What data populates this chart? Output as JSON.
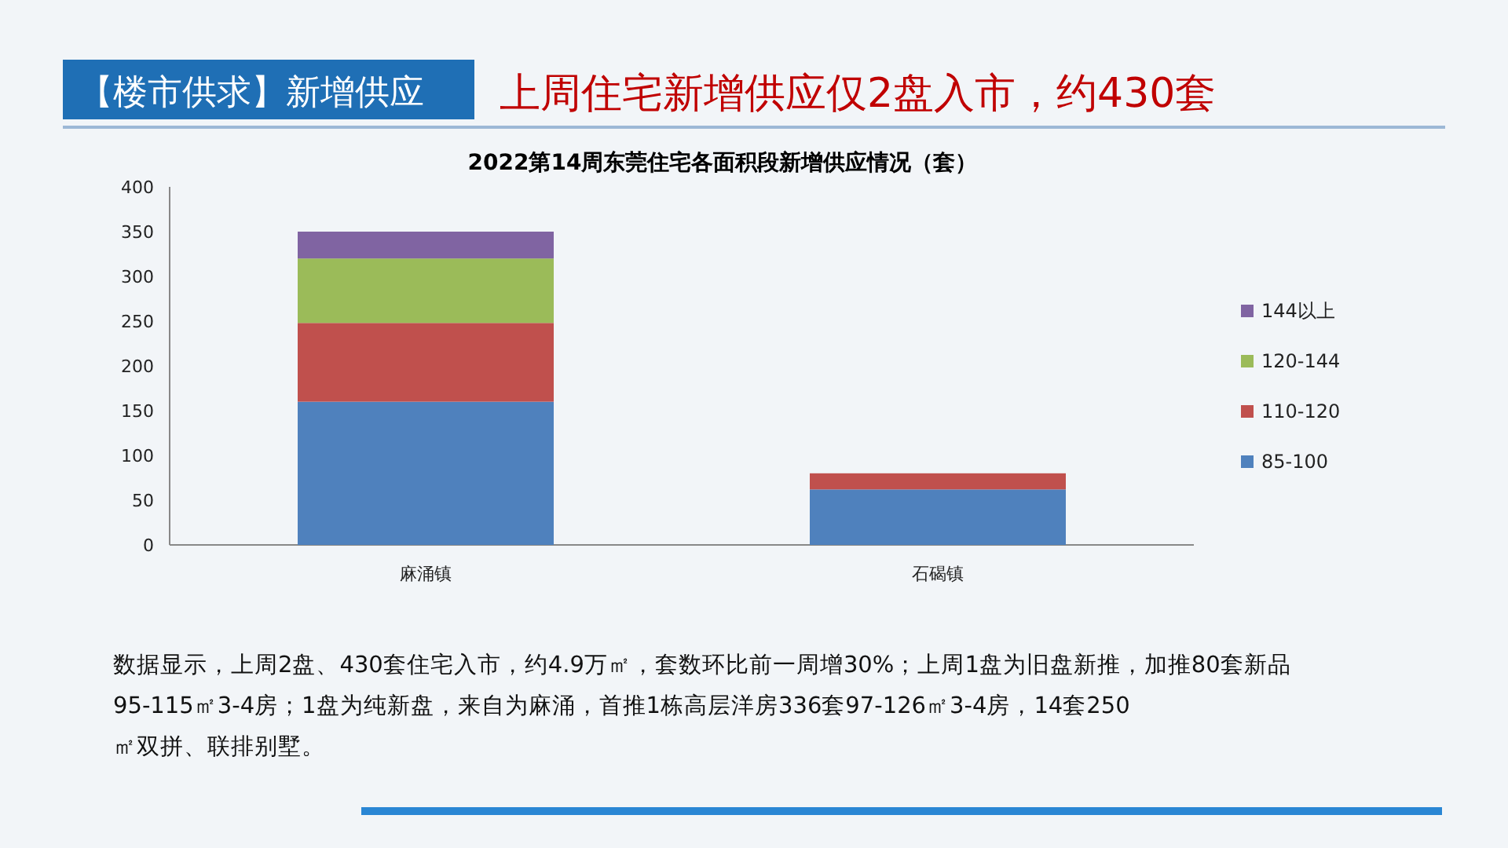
{
  "chart_data": {
    "type": "bar",
    "title": "2022第14周东莞住宅各面积段新增供应情况（套）",
    "stacked": true,
    "categories": [
      "麻涌镇",
      "石碣镇"
    ],
    "series": [
      {
        "name": "85-100",
        "color": "#4f81bd",
        "values": [
          160,
          62
        ]
      },
      {
        "name": "110-120",
        "color": "#c0504d",
        "values": [
          88,
          18
        ]
      },
      {
        "name": "120-144",
        "color": "#9bbb59",
        "values": [
          72,
          null
        ]
      },
      {
        "name": "144以上",
        "color": "#8064a2",
        "values": [
          30,
          null
        ]
      }
    ],
    "ylim": [
      0,
      400
    ],
    "yticks": [
      0,
      50,
      100,
      150,
      200,
      250,
      300,
      350,
      400
    ],
    "grid": false,
    "legend": "right",
    "annotations": [
      "【楼市供求】新增供应",
      "上周住宅新增供应仅2盘入市，约430套",
      "数据显示，上周2盘、430套住宅入市，约4.9万㎡，套数环比前一周增30%；上周1盘为旧盘新推，加推80套新品95-115㎡3-4房；1盘为纯新盘，来自为麻涌，首推1栋高层洋房336套97-126㎡3-4房，14套250㎡双拼、联排别墅。"
    ]
  }
}
